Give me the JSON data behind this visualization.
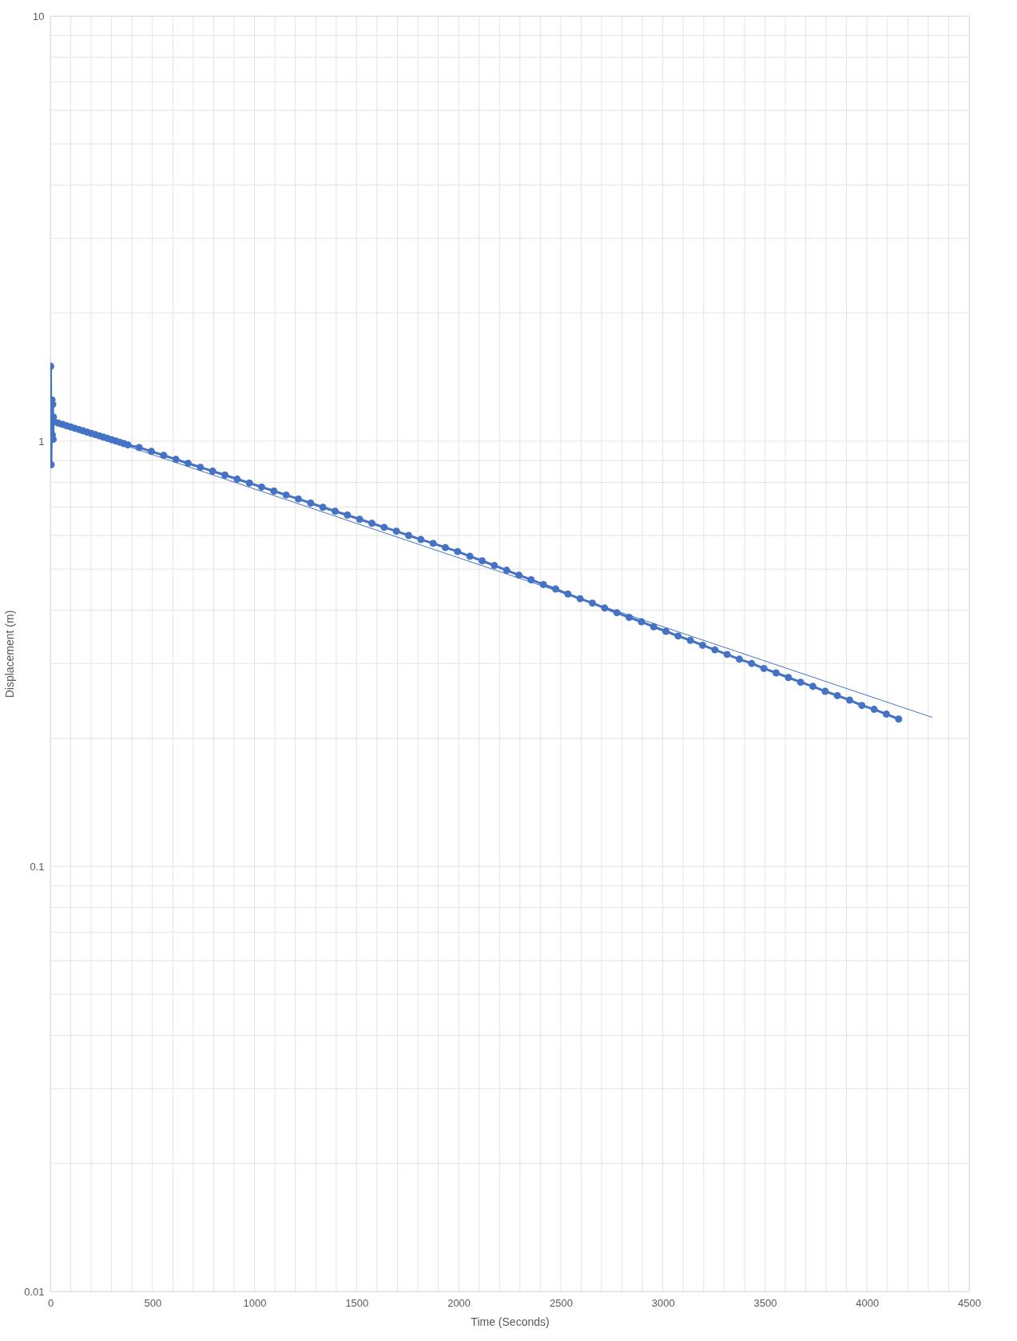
{
  "chart_data": {
    "type": "line",
    "xlabel": "Time (Seconds)",
    "ylabel": "Displacement (m)",
    "log": "y",
    "grid": true,
    "line_style": "solid",
    "xlim": [
      0,
      4500
    ],
    "ylim": [
      0.01,
      10
    ],
    "xticks": [
      0,
      {
        "value": 100,
        "label": null
      },
      {
        "value": 200,
        "label": null
      },
      {
        "value": 300,
        "label": null
      },
      {
        "value": 400,
        "label": null
      },
      500,
      {
        "value": 600,
        "label": null
      },
      {
        "value": 700,
        "label": null
      },
      {
        "value": 800,
        "label": null
      },
      {
        "value": 900,
        "label": null
      },
      1000,
      {
        "value": 1100,
        "label": null
      },
      {
        "value": 1200,
        "label": null
      },
      {
        "value": 1300,
        "label": null
      },
      {
        "value": 1400,
        "label": null
      },
      1500,
      {
        "value": 1600,
        "label": null
      },
      {
        "value": 1700,
        "label": null
      },
      {
        "value": 1800,
        "label": null
      },
      {
        "value": 1900,
        "label": null
      },
      2000,
      {
        "value": 2100,
        "label": null
      },
      {
        "value": 2200,
        "label": null
      },
      {
        "value": 2300,
        "label": null
      },
      {
        "value": 2400,
        "label": null
      },
      2500,
      {
        "value": 2600,
        "label": null
      },
      {
        "value": 2700,
        "label": null
      },
      {
        "value": 2800,
        "label": null
      },
      {
        "value": 2900,
        "label": null
      },
      3000,
      {
        "value": 3100,
        "label": null
      },
      {
        "value": 3200,
        "label": null
      },
      {
        "value": 3300,
        "label": null
      },
      {
        "value": 3400,
        "label": null
      },
      3500,
      {
        "value": 3600,
        "label": null
      },
      {
        "value": 3700,
        "label": null
      },
      {
        "value": 3800,
        "label": null
      },
      {
        "value": 3900,
        "label": null
      },
      4000,
      {
        "value": 4100,
        "label": null
      },
      {
        "value": 4200,
        "label": null
      },
      {
        "value": 4300,
        "label": null
      },
      {
        "value": 4400,
        "label": null
      },
      4500
    ],
    "yticks": [
      0.01,
      {
        "value": 0.02,
        "label": null
      },
      {
        "value": 0.03,
        "label": null
      },
      {
        "value": 0.04,
        "label": null
      },
      {
        "value": 0.05,
        "label": null
      },
      {
        "value": 0.06,
        "label": null
      },
      {
        "value": 0.07,
        "label": null
      },
      {
        "value": 0.08,
        "label": null
      },
      {
        "value": 0.09,
        "label": null
      },
      0.1,
      {
        "value": 0.2,
        "label": null
      },
      {
        "value": 0.3,
        "label": null
      },
      {
        "value": 0.4,
        "label": null
      },
      {
        "value": 0.5,
        "label": null
      },
      {
        "value": 0.6,
        "label": null
      },
      {
        "value": 0.7,
        "label": null
      },
      {
        "value": 0.8,
        "label": null
      },
      {
        "value": 0.9,
        "label": null
      },
      1,
      {
        "value": 2,
        "label": null
      },
      {
        "value": 3,
        "label": null
      },
      {
        "value": 4,
        "label": null
      },
      {
        "value": 5,
        "label": null
      },
      {
        "value": 6,
        "label": null
      },
      {
        "value": 7,
        "label": null
      },
      {
        "value": 8,
        "label": null
      },
      {
        "value": 9,
        "label": null
      },
      10
    ],
    "series": [
      {
        "marker": "circle",
        "color": "#4472c4",
        "x": [
          0,
          2,
          4,
          8,
          10,
          12,
          14,
          15,
          18,
          20,
          40,
          60,
          80,
          100,
          120,
          140,
          160,
          180,
          200,
          220,
          240,
          260,
          280,
          300,
          320,
          340,
          360,
          380,
          435,
          495,
          555,
          615,
          675,
          735,
          795,
          855,
          915,
          975,
          1035,
          1095,
          1155,
          1215,
          1275,
          1335,
          1395,
          1455,
          1515,
          1575,
          1635,
          1695,
          1755,
          1815,
          1875,
          1935,
          1995,
          2055,
          2115,
          2175,
          2235,
          2295,
          2355,
          2415,
          2475,
          2535,
          2595,
          2655,
          2715,
          2775,
          2835,
          2895,
          2955,
          3015,
          3075,
          3135,
          3195,
          3255,
          3315,
          3375,
          3435,
          3495,
          3555,
          3615,
          3675,
          3735,
          3795,
          3855,
          3915,
          3975,
          4035,
          4095,
          4155
        ],
        "values": [
          1.1,
          1.5,
          0.88,
          1.25,
          1.035,
          1.22,
          1.01,
          1.14,
          1.11,
          1.11,
          1.102,
          1.095,
          1.087,
          1.08,
          1.072,
          1.065,
          1.058,
          1.05,
          1.043,
          1.036,
          1.029,
          1.022,
          1.015,
          1.008,
          1.001,
          0.994,
          0.987,
          0.98,
          0.966,
          0.946,
          0.926,
          0.906,
          0.887,
          0.868,
          0.85,
          0.832,
          0.814,
          0.797,
          0.78,
          0.763,
          0.747,
          0.731,
          0.715,
          0.699,
          0.684,
          0.67,
          0.655,
          0.641,
          0.627,
          0.614,
          0.6,
          0.587,
          0.575,
          0.562,
          0.55,
          0.536,
          0.523,
          0.51,
          0.497,
          0.484,
          0.472,
          0.46,
          0.449,
          0.437,
          0.426,
          0.416,
          0.405,
          0.395,
          0.385,
          0.376,
          0.366,
          0.357,
          0.348,
          0.34,
          0.331,
          0.323,
          0.315,
          0.307,
          0.3,
          0.292,
          0.285,
          0.278,
          0.271,
          0.265,
          0.258,
          0.252,
          0.246,
          0.239,
          0.234,
          0.228,
          0.222
        ]
      },
      {
        "marker": "none",
        "color": "#4472c4",
        "x": [
          0,
          4320
        ],
        "values": [
          1.12,
          0.224
        ]
      }
    ]
  }
}
